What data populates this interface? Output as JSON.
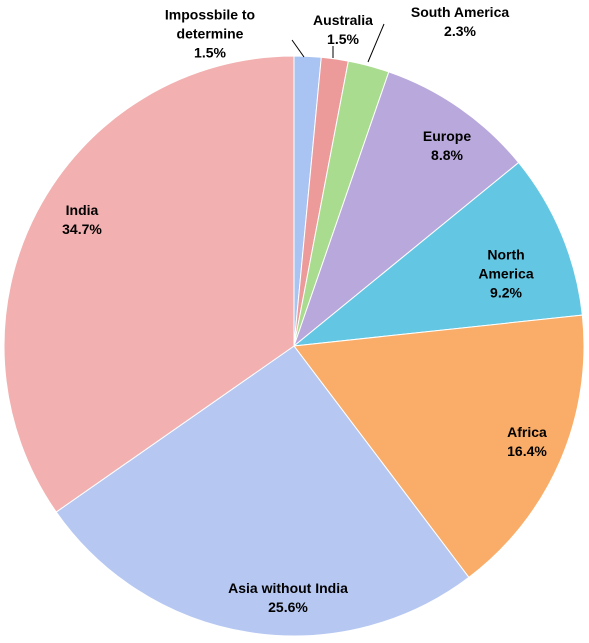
{
  "chart_data": {
    "type": "pie",
    "categories": [
      "Impossbile to determine",
      "Australia",
      "South America",
      "Europe",
      "North America",
      "Africa",
      "Asia without India",
      "India"
    ],
    "values": [
      1.5,
      1.5,
      2.3,
      8.8,
      9.2,
      16.4,
      25.6,
      34.7
    ],
    "value_labels": [
      "1.5%",
      "1.5%",
      "2.3%",
      "8.8%",
      "9.2%",
      "16.4%",
      "25.6%",
      "34.7%"
    ],
    "colors": [
      "#a9c4f2",
      "#ec9a9a",
      "#a9dc8e",
      "#b9a8dc",
      "#63c7e3",
      "#f9ad68",
      "#b6c8f2",
      "#f2b0b0"
    ]
  }
}
